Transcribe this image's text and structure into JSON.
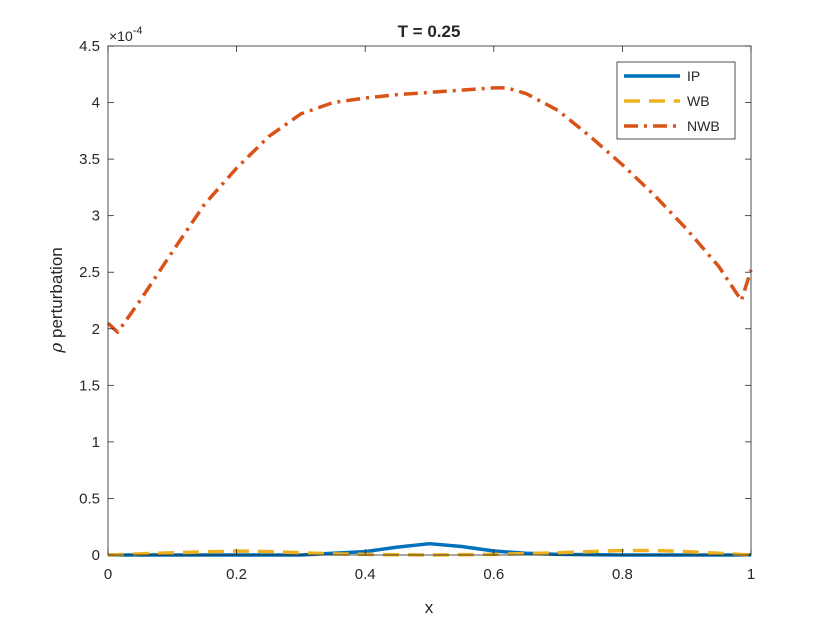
{
  "chart_data": {
    "type": "line",
    "title": "T = 0.25",
    "xlabel": "x",
    "ylabel_symbol": "ρ",
    "ylabel_text": " perturbation",
    "y_exponent_base": "×10",
    "y_exponent_power": "-4",
    "xlim": [
      0,
      1
    ],
    "ylim": [
      0,
      4.5
    ],
    "xticks": [
      0,
      0.2,
      0.4,
      0.6,
      0.8,
      1
    ],
    "xtick_labels": [
      "0",
      "0.2",
      "0.4",
      "0.6",
      "0.8",
      "1"
    ],
    "yticks": [
      0,
      0.5,
      1,
      1.5,
      2,
      2.5,
      3,
      3.5,
      4,
      4.5
    ],
    "ytick_labels": [
      "0",
      "0.5",
      "1",
      "1.5",
      "2",
      "2.5",
      "3",
      "3.5",
      "4",
      "4.5"
    ],
    "grid": false,
    "legend_position": "top-right",
    "series": [
      {
        "name": "IP",
        "color": "#0072BD",
        "style": "solid",
        "points": [
          [
            0,
            0
          ],
          [
            0.1,
            0
          ],
          [
            0.2,
            0
          ],
          [
            0.3,
            0
          ],
          [
            0.35,
            0.015
          ],
          [
            0.4,
            0.03
          ],
          [
            0.45,
            0.07
          ],
          [
            0.5,
            0.1
          ],
          [
            0.55,
            0.075
          ],
          [
            0.6,
            0.035
          ],
          [
            0.65,
            0.015
          ],
          [
            0.7,
            0.005
          ],
          [
            0.8,
            0
          ],
          [
            0.9,
            0
          ],
          [
            1,
            0
          ]
        ]
      },
      {
        "name": "WB",
        "color": "#EDB120",
        "style": "dashed",
        "points": [
          [
            0,
            0
          ],
          [
            0.05,
            0.01
          ],
          [
            0.1,
            0.02
          ],
          [
            0.2,
            0.035
          ],
          [
            0.25,
            0.03
          ],
          [
            0.3,
            0.02
          ],
          [
            0.35,
            0.01
          ],
          [
            0.4,
            0.005
          ],
          [
            0.5,
            0
          ],
          [
            0.6,
            0.005
          ],
          [
            0.7,
            0.02
          ],
          [
            0.8,
            0.04
          ],
          [
            0.85,
            0.04
          ],
          [
            0.9,
            0.03
          ],
          [
            0.95,
            0.015
          ],
          [
            1,
            0
          ]
        ]
      },
      {
        "name": "NWB",
        "color": "#D95319",
        "style": "dashdot",
        "points": [
          [
            0,
            2.05
          ],
          [
            0.015,
            1.97
          ],
          [
            0.05,
            2.25
          ],
          [
            0.1,
            2.68
          ],
          [
            0.15,
            3.1
          ],
          [
            0.2,
            3.42
          ],
          [
            0.25,
            3.7
          ],
          [
            0.3,
            3.9
          ],
          [
            0.35,
            4.0
          ],
          [
            0.4,
            4.04
          ],
          [
            0.45,
            4.07
          ],
          [
            0.5,
            4.09
          ],
          [
            0.55,
            4.11
          ],
          [
            0.6,
            4.13
          ],
          [
            0.62,
            4.13
          ],
          [
            0.65,
            4.08
          ],
          [
            0.7,
            3.93
          ],
          [
            0.75,
            3.7
          ],
          [
            0.8,
            3.45
          ],
          [
            0.85,
            3.18
          ],
          [
            0.9,
            2.88
          ],
          [
            0.95,
            2.55
          ],
          [
            0.985,
            2.25
          ],
          [
            1,
            2.52
          ]
        ]
      }
    ]
  }
}
